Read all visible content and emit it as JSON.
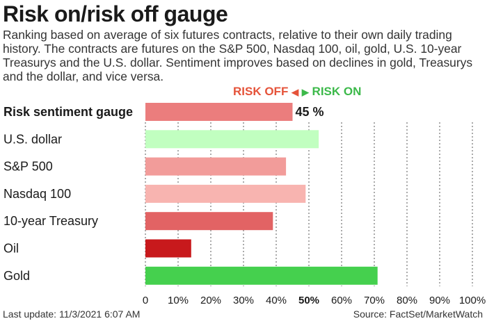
{
  "header": {
    "title": "Risk on/risk off gauge",
    "subtitle": "Ranking based on average of six futures contracts, relative to their own daily trading history. The contracts are futures on the S&P 500, Nasdaq 100, oil, gold, U.S. 10-year Treasurys and the U.S. dollar. Sentiment improves based on declines in gold, Treasurys and the dollar, and vice versa."
  },
  "legend": {
    "risk_off_label": "RISK OFF",
    "risk_off_arrow": "◀",
    "risk_on_arrow": "▶",
    "risk_on_label": "RISK ON",
    "risk_off_color": "#e5533a",
    "risk_on_color": "#3cb94a"
  },
  "chart_data": {
    "type": "bar",
    "orientation": "horizontal",
    "categories": [
      "Risk sentiment gauge",
      "U.S. dollar",
      "S&P 500",
      "Nasdaq 100",
      "10-year Treasury",
      "Oil",
      "Gold"
    ],
    "values": [
      45,
      53,
      43,
      49,
      39,
      14,
      71
    ],
    "colors": [
      "#eb7d7d",
      "#c1ffc0",
      "#f29c9a",
      "#f8b4b0",
      "#e26364",
      "#c8191c",
      "#45d04e"
    ],
    "value_labels": [
      "45 %",
      "",
      "",
      "",
      "",
      "",
      ""
    ],
    "xlim": [
      0,
      100
    ],
    "xticks": [
      "0",
      "10%",
      "20%",
      "30%",
      "40%",
      "50%",
      "60%",
      "70%",
      "80%",
      "90%",
      "100%"
    ],
    "bold_tick_index": 5,
    "grid": "vertical dotted"
  },
  "footer": {
    "last_update": "Last update: 11/3/2021 6:07 AM",
    "source": "Source: FactSet/MarketWatch"
  }
}
